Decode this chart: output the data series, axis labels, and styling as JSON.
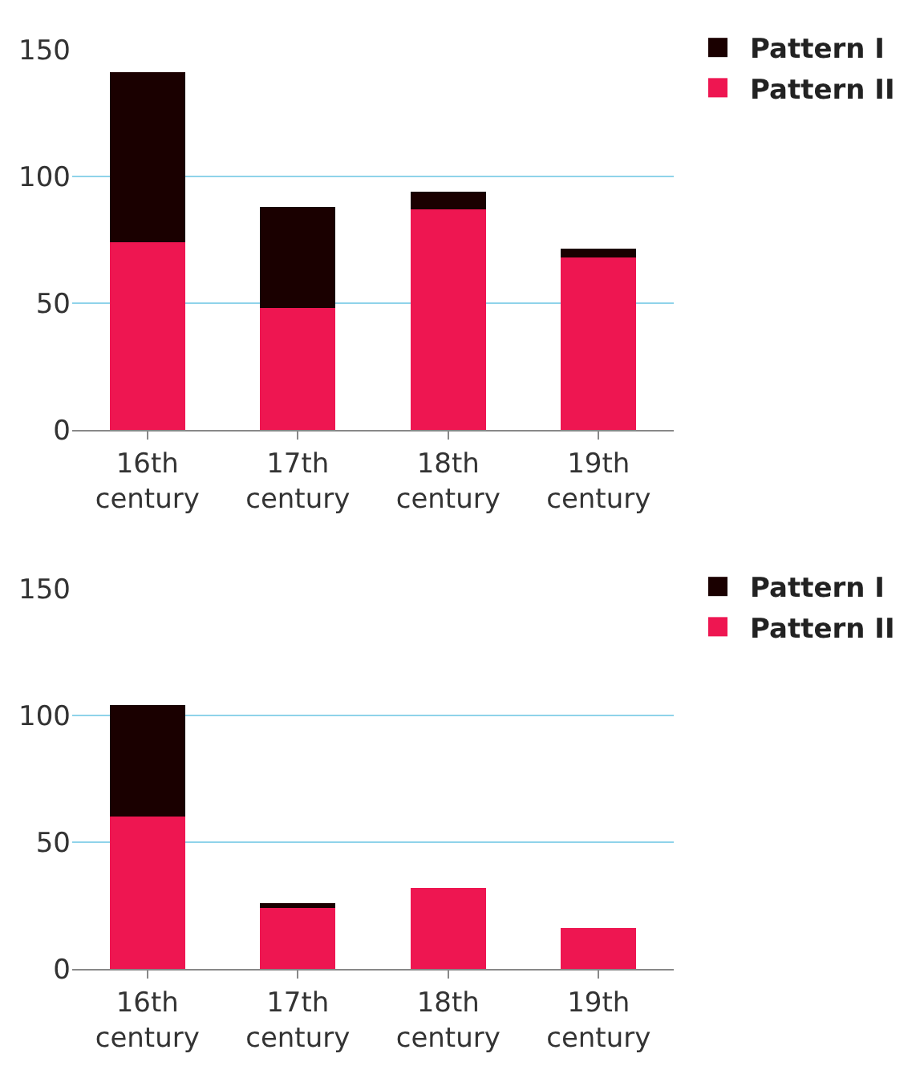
{
  "chart_data": [
    {
      "type": "bar",
      "stacked": true,
      "categories": [
        "16th century",
        "17th century",
        "18th century",
        "19th century"
      ],
      "series": [
        {
          "name": "Pattern II",
          "color": "#ee1651",
          "values": [
            74,
            48,
            87,
            68
          ]
        },
        {
          "name": "Pattern I",
          "color": "#1a0000",
          "values": [
            67,
            40,
            7,
            3.5
          ]
        }
      ],
      "ylim": [
        0,
        150
      ],
      "yticks": [
        0,
        50,
        100,
        150
      ],
      "grid": "y",
      "legend": "top right"
    },
    {
      "type": "bar",
      "stacked": true,
      "categories": [
        "16th century",
        "17th century",
        "18th century",
        "19th century"
      ],
      "series": [
        {
          "name": "Pattern II",
          "color": "#ee1651",
          "values": [
            60,
            24,
            32,
            16
          ]
        },
        {
          "name": "Pattern I",
          "color": "#1a0000",
          "values": [
            44,
            2,
            0,
            0
          ]
        }
      ],
      "ylim": [
        0,
        150
      ],
      "yticks": [
        0,
        50,
        100,
        150
      ],
      "grid": "y",
      "legend": "top right"
    }
  ]
}
